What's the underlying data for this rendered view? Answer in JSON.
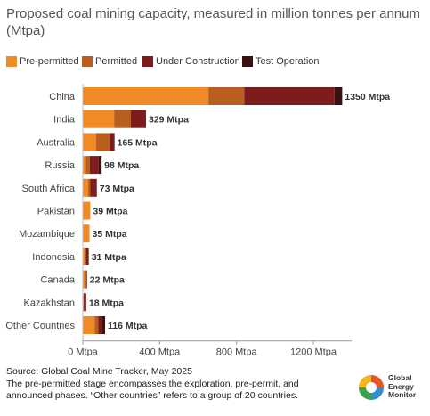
{
  "title": "Proposed coal mining capacity, measured in million tonnes per annum (Mtpa)",
  "legend": [
    {
      "label": "Pre-permitted",
      "color": "#f08a26"
    },
    {
      "label": "Permitted",
      "color": "#b85e1f"
    },
    {
      "label": "Under Construction",
      "color": "#7d1c1c"
    },
    {
      "label": "Test Operation",
      "color": "#3a1010"
    }
  ],
  "chart_data": {
    "type": "bar",
    "orientation": "horizontal",
    "stacked": true,
    "categories": [
      "China",
      "India",
      "Australia",
      "Russia",
      "South Africa",
      "Pakistan",
      "Mozambique",
      "Indonesia",
      "Canada",
      "Kazakhstan",
      "Other Countries"
    ],
    "series": [
      {
        "name": "Pre-permitted",
        "color": "#f08a26",
        "values": [
          654,
          163,
          68,
          16,
          28,
          39,
          35,
          14,
          12,
          5,
          62
        ]
      },
      {
        "name": "Permitted",
        "color": "#b85e1f",
        "values": [
          186,
          87,
          73,
          20,
          10,
          0,
          0,
          3,
          6,
          0,
          19
        ]
      },
      {
        "name": "Under Construction",
        "color": "#7d1c1c",
        "values": [
          470,
          79,
          18,
          46,
          35,
          0,
          0,
          14,
          4,
          13,
          19
        ]
      },
      {
        "name": "Test Operation",
        "color": "#3a1010",
        "values": [
          40,
          0,
          6,
          16,
          0,
          0,
          0,
          0,
          0,
          0,
          16
        ]
      }
    ],
    "data_labels": [
      "1350 Mtpa",
      "329 Mtpa",
      "165 Mtpa",
      "98 Mtpa",
      "73 Mtpa",
      "39 Mtpa",
      "35 Mtpa",
      "31 Mtpa",
      "22 Mtpa",
      "18 Mtpa",
      "116 Mtpa"
    ],
    "x_ticks": [
      0,
      400,
      800,
      1200
    ],
    "x_tick_labels": [
      "0 Mtpa",
      "400 Mtpa",
      "800 Mtpa",
      "1200 Mtpa"
    ],
    "xlim": [
      0,
      1400
    ],
    "legend_position": "top-left",
    "grid": false
  },
  "footer": {
    "source": "Source: Global Coal Mine Tracker, May 2025",
    "note": "The pre-permitted stage encompasses the exploration, pre-permit, and announced phases. “Other countries” refers to a group of 20 countries."
  },
  "logo": {
    "text": "Global\nEnergy\nMonitor",
    "colors": [
      "#e8542a",
      "#f6b51e",
      "#3aa34a",
      "#2f8fd0"
    ]
  }
}
